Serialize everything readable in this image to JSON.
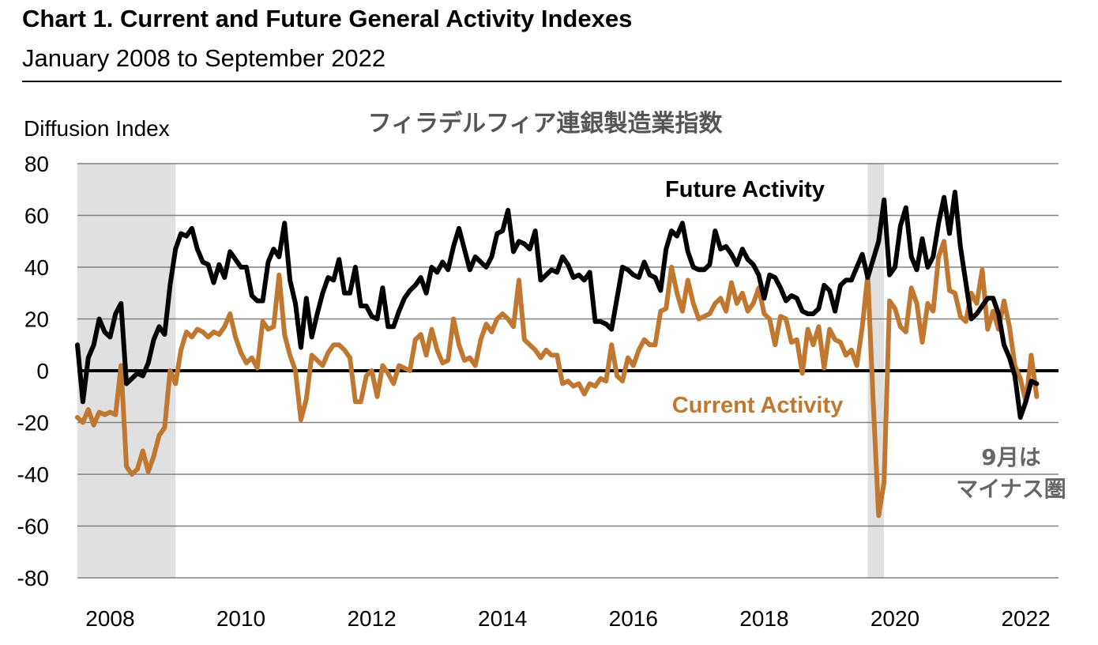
{
  "header": {
    "title": "Chart 1. Current and Future General Activity Indexes",
    "subtitle": "January 2008 to September 2022"
  },
  "chart_data": {
    "type": "line",
    "title": "フィラデルフィア連銀製造業指数",
    "ylabel": "Diffusion Index",
    "xlabel": "",
    "ylim": [
      -80,
      80
    ],
    "yticks": [
      "80",
      "60",
      "40",
      "20",
      "0",
      "-20",
      "-40",
      "-60",
      "-80"
    ],
    "xticks": [
      "2008",
      "2010",
      "2012",
      "2014",
      "2016",
      "2018",
      "2020",
      "2022"
    ],
    "x_range": [
      "2008-01",
      "2022-12"
    ],
    "x_start": "2008-01",
    "x_end": "2022-09",
    "frequency": "monthly",
    "grid": "horizontal",
    "recession_shading": [
      [
        "2008-01",
        "2009-06"
      ],
      [
        "2020-02",
        "2020-04"
      ]
    ],
    "recession_color": "#e0e0e0",
    "series": [
      {
        "name": "Future Activity",
        "color": "#000000",
        "values": [
          10,
          -12,
          5,
          10,
          20,
          15,
          13,
          22,
          26,
          -5,
          -3,
          -1,
          -2,
          3,
          12,
          17,
          14,
          33,
          47,
          53,
          52,
          55,
          47,
          42,
          41,
          34,
          41,
          36,
          46,
          43,
          40,
          40,
          29,
          27,
          27,
          42,
          47,
          44,
          57,
          35,
          26,
          9,
          28,
          13,
          22,
          30,
          36,
          35,
          43,
          30,
          30,
          40,
          25,
          25,
          21,
          20,
          32,
          17,
          17,
          23,
          28,
          31,
          33,
          36,
          30,
          40,
          38,
          42,
          39,
          48,
          55,
          47,
          39,
          44,
          42,
          40,
          44,
          53,
          54,
          62,
          46,
          50,
          49,
          47,
          54,
          35,
          37,
          39,
          38,
          44,
          41,
          36,
          37,
          35,
          38,
          19,
          19,
          18,
          16,
          28,
          40,
          39,
          37,
          36,
          42,
          37,
          36,
          31,
          47,
          54,
          52,
          57,
          46,
          40,
          39,
          39,
          41,
          54,
          47,
          48,
          45,
          41,
          47,
          43,
          41,
          37,
          28,
          37,
          36,
          32,
          27,
          29,
          28,
          23,
          22,
          22,
          24,
          33,
          31,
          23,
          33,
          35,
          35,
          40,
          45,
          36,
          43,
          50,
          66,
          37,
          40,
          56,
          63,
          44,
          39,
          51,
          40,
          44,
          57,
          67,
          53,
          69,
          48,
          34,
          20,
          22,
          25,
          28,
          28,
          22,
          10,
          5,
          -2,
          -18,
          -12,
          -4,
          -5
        ]
      },
      {
        "name": "Current Activity",
        "color": "#c07830",
        "values": [
          -18,
          -20,
          -15,
          -21,
          -16,
          -17,
          -16,
          -17,
          2,
          -37,
          -40,
          -38,
          -31,
          -39,
          -33,
          -25,
          -22,
          0,
          -5,
          8,
          15,
          13,
          16,
          15,
          13,
          15,
          14,
          17,
          22,
          13,
          7,
          3,
          5,
          1,
          19,
          16,
          17,
          37,
          14,
          6,
          0,
          -19,
          -11,
          6,
          4,
          2,
          7,
          10,
          10,
          8,
          5,
          -12,
          -12,
          -2,
          0,
          -10,
          2,
          -1,
          -5,
          2,
          1,
          0,
          12,
          14,
          6,
          16,
          8,
          3,
          4,
          20,
          10,
          4,
          5,
          2,
          12,
          18,
          15,
          20,
          22,
          20,
          17,
          35,
          12,
          10,
          8,
          5,
          8,
          6,
          6,
          -5,
          -4,
          -6,
          -5,
          -9,
          -5,
          -6,
          -3,
          -4,
          10,
          -2,
          -4,
          5,
          2,
          8,
          12,
          10,
          10,
          23,
          24,
          40,
          30,
          23,
          35,
          26,
          20,
          21,
          22,
          26,
          28,
          23,
          34,
          26,
          30,
          23,
          26,
          32,
          22,
          20,
          10,
          21,
          20,
          11,
          12,
          -1,
          16,
          10,
          17,
          1,
          16,
          12,
          11,
          6,
          8,
          2,
          17,
          37,
          -12,
          -56,
          -43,
          27,
          24,
          17,
          15,
          32,
          26,
          11,
          26,
          23,
          44,
          50,
          31,
          30,
          21,
          19,
          30,
          26,
          39,
          16,
          23,
          16,
          27,
          17,
          2,
          -3,
          -12,
          6,
          -10
        ]
      }
    ],
    "annotations": {
      "future_label": "Future Activity",
      "current_label": "Current Activity",
      "note_line1": "9月は",
      "note_line2": "マイナス圏"
    }
  }
}
